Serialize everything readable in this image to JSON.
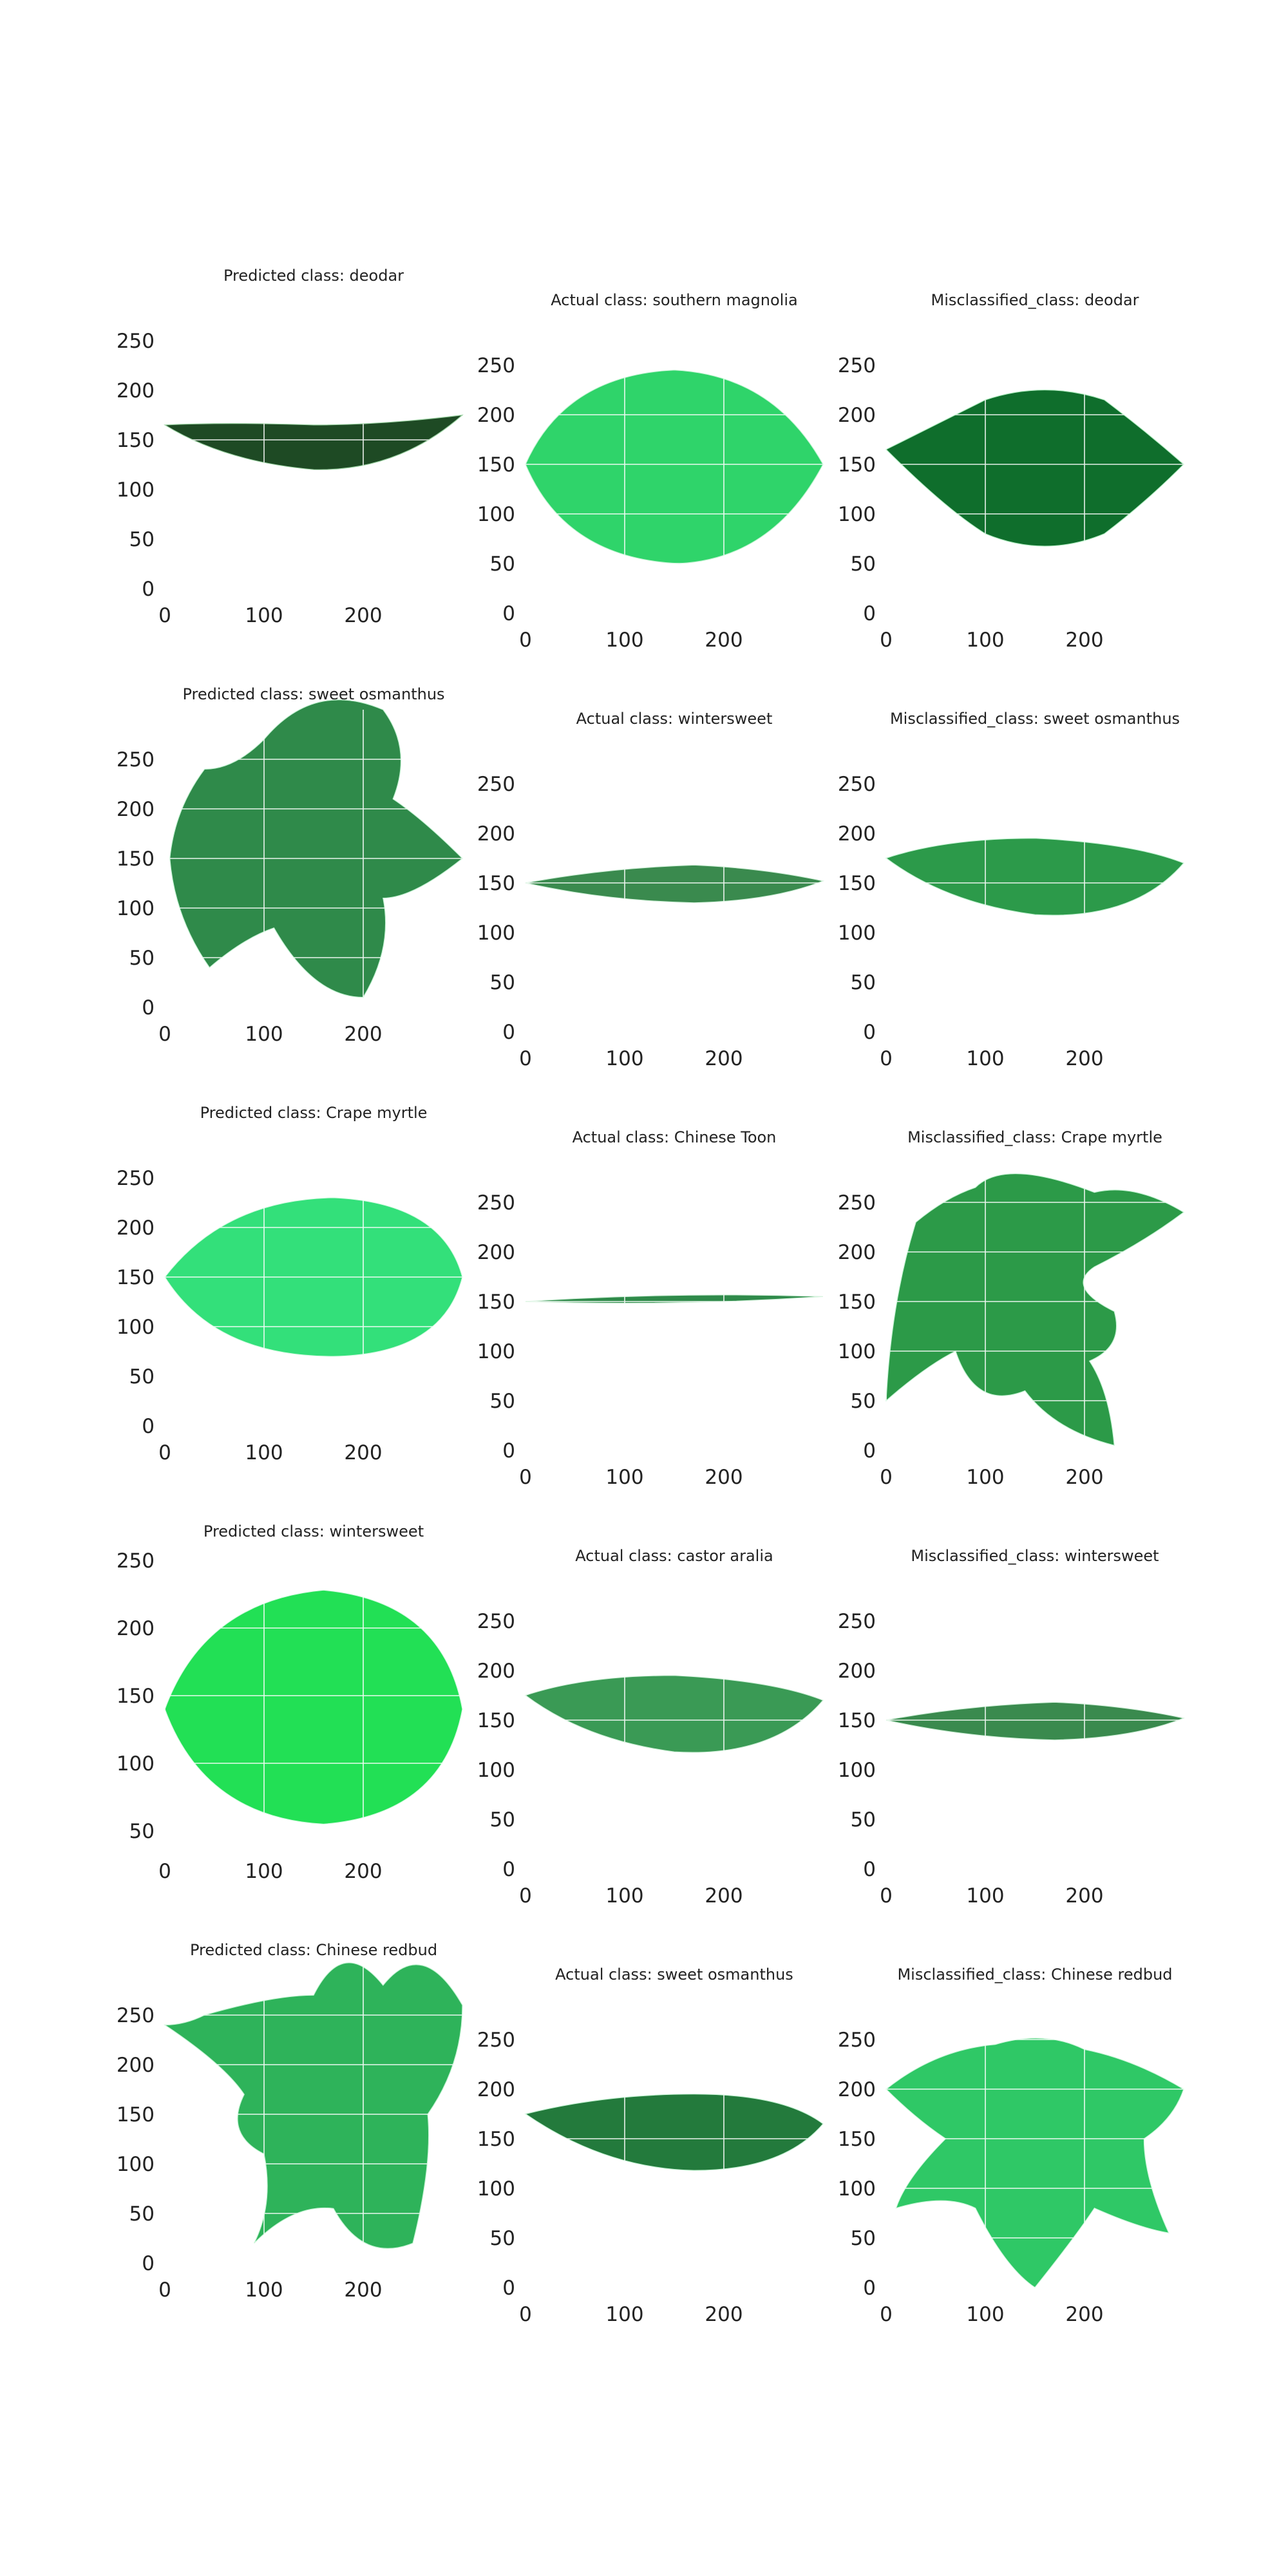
{
  "chart_data": [
    {
      "type": "image",
      "title": "Predicted class: deodar",
      "leaf": "lanceolate",
      "color": "#1e4a24",
      "vein": "#9fd5a6",
      "xticks": [
        0,
        100,
        200
      ],
      "yticks": [
        0,
        50,
        100,
        150,
        200,
        250
      ],
      "xlim": [
        0,
        300
      ],
      "ylim": [
        300,
        0
      ]
    },
    {
      "type": "image",
      "title": "Actual class: southern magnolia",
      "leaf": "ovate",
      "color": "#2fd46a",
      "vein": "#c8f5d6",
      "xticks": [
        0,
        100,
        200
      ],
      "yticks": [
        0,
        50,
        100,
        150,
        200,
        250
      ],
      "xlim": [
        0,
        300
      ],
      "ylim": [
        300,
        0
      ]
    },
    {
      "type": "image",
      "title": "Misclassified_class: deodar",
      "leaf": "ovate-dark",
      "color": "#0f6e2c",
      "vein": "#b7f0c6",
      "xticks": [
        0,
        100,
        200
      ],
      "yticks": [
        0,
        50,
        100,
        150,
        200,
        250
      ],
      "xlim": [
        0,
        300
      ],
      "ylim": [
        300,
        0
      ]
    },
    {
      "type": "image",
      "title": "Predicted class: sweet osmanthus",
      "leaf": "lobed",
      "color": "#2f8a4a",
      "vein": "#c8f5d6",
      "xticks": [
        0,
        100,
        200
      ],
      "yticks": [
        0,
        50,
        100,
        150,
        200,
        250
      ],
      "xlim": [
        0,
        300
      ],
      "ylim": [
        300,
        0
      ]
    },
    {
      "type": "image",
      "title": "Actual class: wintersweet",
      "leaf": "narrow",
      "color": "#3a8a4e",
      "vein": "#d4f2dc",
      "xticks": [
        0,
        100,
        200
      ],
      "yticks": [
        0,
        50,
        100,
        150,
        200,
        250
      ],
      "xlim": [
        0,
        300
      ],
      "ylim": [
        300,
        0
      ]
    },
    {
      "type": "image",
      "title": "Misclassified_class: sweet osmanthus",
      "leaf": "elliptic",
      "color": "#2c9a4a",
      "vein": "#c8f5d6",
      "xticks": [
        0,
        100,
        200
      ],
      "yticks": [
        0,
        50,
        100,
        150,
        200,
        250
      ],
      "xlim": [
        0,
        300
      ],
      "ylim": [
        300,
        0
      ]
    },
    {
      "type": "image",
      "title": "Predicted class: Crape myrtle",
      "leaf": "oval",
      "color": "#33e07a",
      "vein": "#d9fbe5",
      "xticks": [
        0,
        100,
        200
      ],
      "yticks": [
        0,
        50,
        100,
        150,
        200,
        250
      ],
      "xlim": [
        0,
        300
      ],
      "ylim": [
        300,
        0
      ]
    },
    {
      "type": "image",
      "title": "Actual class: Chinese Toon",
      "leaf": "thin",
      "color": "#2f8a4a",
      "vein": "#d4f2dc",
      "xticks": [
        0,
        100,
        200
      ],
      "yticks": [
        0,
        50,
        100,
        150,
        200,
        250
      ],
      "xlim": [
        0,
        300
      ],
      "ylim": [
        300,
        0
      ]
    },
    {
      "type": "image",
      "title": "Misclassified_class: Crape myrtle",
      "leaf": "maple",
      "color": "#2c9a48",
      "vein": "#c8f5d6",
      "xticks": [
        0,
        100,
        200
      ],
      "yticks": [
        0,
        50,
        100,
        150,
        200,
        250
      ],
      "xlim": [
        0,
        300
      ],
      "ylim": [
        300,
        0
      ]
    },
    {
      "type": "image",
      "title": "Predicted class: wintersweet",
      "leaf": "oval-bright",
      "color": "#22e055",
      "vein": "#d9fbe5",
      "xticks": [
        0,
        100,
        200
      ],
      "yticks": [
        50,
        100,
        150,
        200,
        250
      ],
      "xlim": [
        0,
        300
      ],
      "ylim": [
        260,
        40
      ]
    },
    {
      "type": "image",
      "title": "Actual class: castor aralia",
      "leaf": "elliptic",
      "color": "#3a9a55",
      "vein": "#d4f2dc",
      "xticks": [
        0,
        100,
        200
      ],
      "yticks": [
        0,
        50,
        100,
        150,
        200,
        250
      ],
      "xlim": [
        0,
        300
      ],
      "ylim": [
        300,
        0
      ]
    },
    {
      "type": "image",
      "title": "Misclassified_class: wintersweet",
      "leaf": "narrow",
      "color": "#3a8a4e",
      "vein": "#d4f2dc",
      "xticks": [
        0,
        100,
        200
      ],
      "yticks": [
        0,
        50,
        100,
        150,
        200,
        250
      ],
      "xlim": [
        0,
        300
      ],
      "ylim": [
        300,
        0
      ]
    },
    {
      "type": "image",
      "title": "Predicted class: Chinese redbud",
      "leaf": "big-maple",
      "color": "#2eb35a",
      "vein": "#c8f5d6",
      "xticks": [
        0,
        100,
        200
      ],
      "yticks": [
        0,
        50,
        100,
        150,
        200,
        250
      ],
      "xlim": [
        0,
        300
      ],
      "ylim": [
        300,
        0
      ]
    },
    {
      "type": "image",
      "title": "Actual class: sweet osmanthus",
      "leaf": "elliptic-dark",
      "color": "#237a3c",
      "vein": "#c8f5d6",
      "xticks": [
        0,
        100,
        200
      ],
      "yticks": [
        0,
        50,
        100,
        150,
        200,
        250
      ],
      "xlim": [
        0,
        300
      ],
      "ylim": [
        300,
        0
      ]
    },
    {
      "type": "image",
      "title": "Misclassified_class: Chinese redbud",
      "leaf": "star",
      "color": "#2fc866",
      "vein": "#d4f8e0",
      "xticks": [
        0,
        100,
        200
      ],
      "yticks": [
        0,
        50,
        100,
        150,
        200,
        250
      ],
      "xlim": [
        0,
        300
      ],
      "ylim": [
        300,
        0
      ]
    }
  ]
}
